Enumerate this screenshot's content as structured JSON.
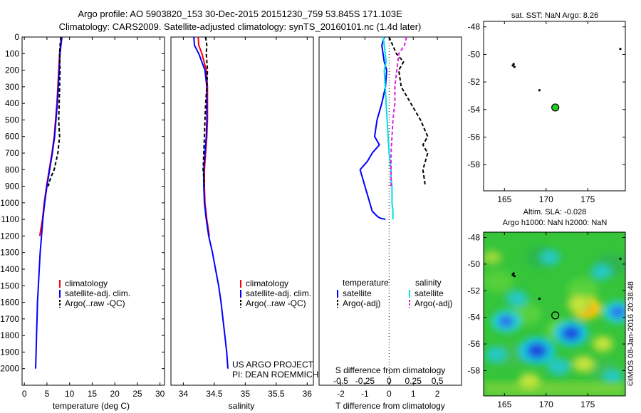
{
  "header": {
    "line1": "Argo profile: AO 5903820_153 30-Dec-2015 20151230_759 53.845S 171.103E",
    "line2": "Climatology: CARS2009. Satellite-adjusted climatology: synTS_20160101.nc (1.4d later)"
  },
  "colors": {
    "climatology": "#ff0000",
    "satellite": "#0000ff",
    "argo": "#000000",
    "salinity_satellite": "#00e0e0",
    "salinity_argo": "#e020e0",
    "float_marker": "#22cc22"
  },
  "chart_data": [
    {
      "id": "temperature",
      "type": "line",
      "xlabel": "temperature (deg C)",
      "ylabel": "",
      "xlim": [
        -0.5,
        31
      ],
      "ylim": [
        2100,
        0
      ],
      "xticks": [
        0,
        5,
        10,
        15,
        20,
        25,
        30
      ],
      "yticks": [
        0,
        100,
        200,
        300,
        400,
        500,
        600,
        700,
        800,
        900,
        1000,
        1100,
        1200,
        1300,
        1400,
        1500,
        1600,
        1700,
        1800,
        1900,
        2000
      ],
      "legend": [
        "climatology",
        "satellite-adj. clim.",
        "Argo(..raw -QC)"
      ],
      "series": [
        {
          "name": "climatology",
          "color": "#ff0000",
          "dash": false,
          "x": [
            8.2,
            8.0,
            7.8,
            7.6,
            7.4,
            7.2,
            6.9,
            6.6,
            6.1,
            5.5,
            4.9,
            4.4,
            4.0,
            3.7,
            3.4
          ],
          "y": [
            0,
            50,
            100,
            200,
            300,
            400,
            500,
            600,
            700,
            800,
            900,
            1000,
            1100,
            1150,
            1200
          ]
        },
        {
          "name": "satellite-adj. clim.",
          "color": "#0000ff",
          "dash": false,
          "x": [
            8.3,
            8.1,
            7.9,
            7.7,
            7.5,
            7.3,
            7.0,
            6.7,
            6.2,
            5.6,
            5.0,
            4.5,
            4.1,
            3.8,
            3.5,
            3.3,
            3.1,
            2.9,
            2.8,
            2.7,
            2.6,
            2.5
          ],
          "y": [
            0,
            50,
            100,
            200,
            300,
            400,
            500,
            600,
            700,
            800,
            900,
            1000,
            1100,
            1200,
            1300,
            1400,
            1500,
            1600,
            1700,
            1800,
            1900,
            2000
          ]
        },
        {
          "name": "Argo(..raw -QC)",
          "color": "#000000",
          "dash": true,
          "x": [
            8.1,
            7.9,
            7.8,
            7.9,
            7.8,
            7.7,
            7.6,
            7.8,
            7.4,
            6.6,
            5.8,
            5.3
          ],
          "y": [
            0,
            50,
            100,
            200,
            300,
            400,
            500,
            600,
            700,
            800,
            850,
            900
          ]
        }
      ]
    },
    {
      "id": "salinity",
      "type": "line",
      "xlabel": "salinity",
      "xlim": [
        33.8,
        36.1
      ],
      "ylim": [
        2100,
        0
      ],
      "xticks": [
        34,
        34.5,
        35,
        35.5,
        36
      ],
      "xtick_labels": [
        "34",
        "34.5",
        "35",
        "35.5",
        "36"
      ],
      "legend": [
        "climatology",
        "satellite-adj. clim.",
        "Argo(..raw -QC)"
      ],
      "annotation": [
        "US ARGO PROJECT",
        "PI: DEAN ROEMMICH"
      ],
      "series": [
        {
          "name": "climatology",
          "color": "#ff0000",
          "dash": false,
          "x": [
            34.24,
            34.25,
            34.3,
            34.37,
            34.39,
            34.39,
            34.39,
            34.38,
            34.36,
            34.34,
            34.34,
            34.35,
            34.38,
            34.42
          ],
          "y": [
            0,
            50,
            100,
            200,
            300,
            400,
            500,
            600,
            700,
            800,
            900,
            1000,
            1100,
            1200
          ]
        },
        {
          "name": "satellite-adj. clim.",
          "color": "#0000ff",
          "dash": false,
          "x": [
            34.17,
            34.18,
            34.25,
            34.35,
            34.38,
            34.38,
            34.38,
            34.37,
            34.35,
            34.33,
            34.33,
            34.34,
            34.37,
            34.41,
            34.47,
            34.52,
            34.57,
            34.61,
            34.64,
            34.67,
            34.7,
            34.72
          ],
          "y": [
            0,
            50,
            100,
            200,
            300,
            400,
            500,
            600,
            700,
            800,
            900,
            1000,
            1100,
            1200,
            1300,
            1400,
            1500,
            1600,
            1700,
            1800,
            1900,
            2000
          ]
        },
        {
          "name": "Argo(..raw -QC)",
          "color": "#000000",
          "dash": true,
          "x": [
            34.36,
            34.38,
            34.37,
            34.39,
            34.38,
            34.36,
            34.35,
            34.34,
            34.33,
            34.32,
            34.33,
            34.34
          ],
          "y": [
            0,
            50,
            100,
            200,
            300,
            400,
            500,
            600,
            700,
            800,
            850,
            900
          ]
        }
      ]
    },
    {
      "id": "difference",
      "type": "line",
      "xlabel": "T difference from climatology",
      "xlabel_top": "S difference from climatology",
      "xlim": [
        -2.9,
        3.0
      ],
      "ylim": [
        2100,
        0
      ],
      "xticks": [
        -2,
        -1,
        0,
        1,
        2
      ],
      "xticks_salinity": [
        -0.5,
        -0.25,
        0,
        0.25,
        0.5
      ],
      "xtick_labels_salinity": [
        "-0.5",
        "-0.25",
        "0",
        "0.25",
        "0.5"
      ],
      "legend_titles": [
        "temperature",
        "salinity"
      ],
      "legend": [
        "satellite",
        "Argo(-adj)",
        "satellite",
        "Argo(-adj)"
      ],
      "series": [
        {
          "name": "satellite",
          "quantity": "temperature",
          "color": "#0000ff",
          "dash": false,
          "x": [
            -0.2,
            -0.3,
            -0.25,
            -0.2,
            -0.1,
            -0.15,
            -0.3,
            -0.5,
            -0.6,
            -0.4,
            -0.7,
            -0.9,
            -1.2,
            -1.1,
            -1.0,
            -0.9,
            -0.8,
            -0.7,
            -0.5,
            -0.4,
            -0.3,
            -0.2,
            -0.15
          ],
          "y": [
            0,
            50,
            100,
            150,
            200,
            300,
            400,
            500,
            600,
            650,
            700,
            750,
            800,
            850,
            900,
            950,
            1000,
            1050,
            1080,
            1090,
            1095,
            1098,
            1100
          ]
        },
        {
          "name": "Argo(-adj)",
          "quantity": "temperature",
          "color": "#000000",
          "dash": true,
          "x": [
            0.0,
            0.15,
            0.3,
            0.6,
            0.4,
            0.5,
            0.9,
            1.3,
            1.6,
            1.4,
            1.6,
            1.5,
            1.4,
            1.5
          ],
          "y": [
            0,
            50,
            100,
            150,
            200,
            300,
            400,
            500,
            600,
            650,
            700,
            750,
            800,
            900
          ]
        },
        {
          "name": "satellite",
          "quantity": "salinity",
          "color": "#00e0e0",
          "dash": false,
          "x": [
            -0.06,
            -0.05,
            -0.04,
            -0.03,
            -0.05,
            -0.04,
            -0.03,
            -0.02,
            -0.01,
            0.0,
            0.01,
            0.02,
            0.02,
            0.03,
            0.03,
            0.03,
            0.04,
            0.04,
            0.04,
            0.04
          ],
          "y": [
            0,
            50,
            100,
            150,
            200,
            300,
            400,
            500,
            600,
            700,
            750,
            800,
            850,
            900,
            950,
            1000,
            1050,
            1080,
            1090,
            1100
          ]
        },
        {
          "name": "Argo(-adj)",
          "quantity": "salinity",
          "color": "#e020e0",
          "dash": true,
          "x": [
            0.18,
            0.16,
            0.1,
            0.08,
            0.06,
            0.06,
            0.04,
            0.03,
            0.02,
            0.02,
            0.02,
            0.02
          ],
          "y": [
            0,
            50,
            100,
            200,
            300,
            400,
            500,
            600,
            700,
            750,
            800,
            900
          ]
        }
      ]
    },
    {
      "id": "sst_map",
      "type": "scatter",
      "title": "sat. SST: NaN Argo: 8.26",
      "xlim": [
        162.5,
        179.5
      ],
      "ylim": [
        -59.9,
        -47.6
      ],
      "xticks": [
        165,
        170,
        175
      ],
      "yticks": [
        -48,
        -50,
        -52,
        -54,
        -56,
        -58
      ],
      "points": [
        {
          "x": 166.1,
          "y": -50.7,
          "kind": "track"
        },
        {
          "x": 166.0,
          "y": -50.8,
          "kind": "track"
        },
        {
          "x": 166.2,
          "y": -50.9,
          "kind": "track"
        },
        {
          "x": 169.2,
          "y": -52.6,
          "kind": "track"
        },
        {
          "x": 178.9,
          "y": -49.6,
          "kind": "track"
        },
        {
          "x": 171.1,
          "y": -53.85,
          "kind": "float"
        }
      ]
    },
    {
      "id": "sla_map",
      "type": "heatmap",
      "title_line1": "Altim. SLA: -0.028",
      "title_line2": "Argo h1000: NaN h2000: NaN",
      "watermark": "©IMOS 08-Jan-2016 20:38:48",
      "xlim": [
        162.5,
        179.5
      ],
      "ylim": [
        -59.9,
        -47.6
      ],
      "xticks": [
        165,
        170,
        175
      ],
      "yticks": [
        -48,
        -50,
        -52,
        -54,
        -56,
        -58
      ],
      "anomalies": [
        {
          "x": 174.8,
          "y": -53.3,
          "v": 0.6
        },
        {
          "x": 174.0,
          "y": -53.0,
          "v": 0.4
        },
        {
          "x": 173.0,
          "y": -55.2,
          "v": -0.8
        },
        {
          "x": 168.9,
          "y": -56.5,
          "v": -0.9
        },
        {
          "x": 165.2,
          "y": -54.3,
          "v": -0.6
        },
        {
          "x": 178.6,
          "y": -53.6,
          "v": -0.6
        },
        {
          "x": 164.0,
          "y": -56.8,
          "v": -0.3
        },
        {
          "x": 166.5,
          "y": -52.6,
          "v": -0.3
        },
        {
          "x": 176.6,
          "y": -50.6,
          "v": -0.25
        },
        {
          "x": 170.5,
          "y": -49.5,
          "v": -0.2
        },
        {
          "x": 174.5,
          "y": -57.5,
          "v": 0.3
        },
        {
          "x": 176.8,
          "y": -56.0,
          "v": 0.25
        },
        {
          "x": 168.0,
          "y": -58.8,
          "v": 0.3
        },
        {
          "x": 163.5,
          "y": -49.5,
          "v": 0.15
        },
        {
          "x": 178.0,
          "y": -58.5,
          "v": -0.2
        },
        {
          "x": 171.5,
          "y": -57.7,
          "v": -0.35
        }
      ],
      "points": [
        {
          "x": 166.1,
          "y": -50.7,
          "kind": "track"
        },
        {
          "x": 166.0,
          "y": -50.8,
          "kind": "track"
        },
        {
          "x": 166.2,
          "y": -50.9,
          "kind": "track"
        },
        {
          "x": 169.2,
          "y": -52.6,
          "kind": "track"
        },
        {
          "x": 178.9,
          "y": -49.6,
          "kind": "track"
        },
        {
          "x": 171.1,
          "y": -53.85,
          "kind": "float"
        }
      ]
    }
  ]
}
